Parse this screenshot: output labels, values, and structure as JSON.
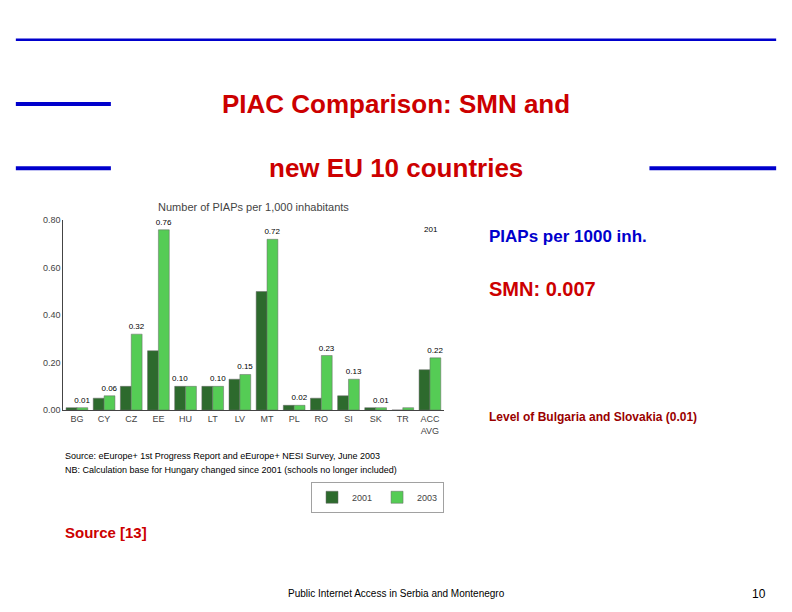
{
  "chart_data": {
    "type": "bar",
    "title": "Number of PIAPs per 1,000 inhabitants",
    "categories": [
      "BG",
      "CY",
      "CZ",
      "EE",
      "HU",
      "LT",
      "LV",
      "MT",
      "PL",
      "RO",
      "SI",
      "SK",
      "TR",
      "ACC\nAVG"
    ],
    "series": [
      {
        "name": "2001",
        "color": "#2d6a2d",
        "values": [
          0.01,
          0.05,
          0.1,
          0.25,
          0.1,
          0.1,
          0.13,
          0.5,
          0.02,
          0.05,
          0.06,
          0.01,
          0.0,
          0.17
        ],
        "value_labels": [
          null,
          null,
          null,
          null,
          "0.10",
          null,
          null,
          null,
          null,
          null,
          null,
          null,
          null,
          null
        ]
      },
      {
        "name": "2003",
        "color": "#55cc55",
        "values": [
          0.01,
          0.06,
          0.32,
          0.76,
          0.1,
          0.1,
          0.15,
          0.72,
          0.02,
          0.23,
          0.13,
          0.01,
          0.01,
          0.22
        ],
        "value_labels": [
          "0.01",
          "0.06",
          "0.32",
          "0.76",
          null,
          "0.10",
          "0.15",
          "0.72",
          "0.02",
          "0.23",
          "0.13",
          "0.01",
          null,
          "0.22"
        ]
      }
    ],
    "ylim": [
      0,
      0.8
    ],
    "yticks": [
      {
        "value": 0,
        "label": "0.00"
      },
      {
        "value": 0.2,
        "label": "0.20"
      },
      {
        "value": 0.4,
        "label": "0.40"
      },
      {
        "value": 0.6,
        "label": "0.60"
      },
      {
        "value": 0.8,
        "label": "0.80"
      }
    ],
    "grid": false,
    "data_labels": true,
    "annotations": [
      {
        "text": "PIAC Comparison: SMN and",
        "color": "#cc0000"
      },
      {
        "text": "new EU 10 countries",
        "color": "#cc0000"
      },
      {
        "text": "201",
        "color": "#000000"
      },
      {
        "text": "Source: eEurope+ 1st Progress Report and eEurope+ NESI Survey, June 2003",
        "color": "#000000"
      },
      {
        "text": "NB: Calculation base for Hungary changed since 2001 (schools no longer included)",
        "color": "#000000"
      },
      {
        "text": "PIAPs per 1000 inh.",
        "color": "#0000cc"
      },
      {
        "text": "SMN: 0.007",
        "color": "#cc0000"
      },
      {
        "text": "Level of Bulgaria and Slovakia (0.01)",
        "color": "#990000"
      },
      {
        "text": "Source [13]",
        "color": "#cc0000"
      },
      {
        "text": "Public Internet Access in Serbia and Montenegro",
        "color": "#000000"
      },
      {
        "text": "10",
        "color": "#000000"
      }
    ]
  }
}
